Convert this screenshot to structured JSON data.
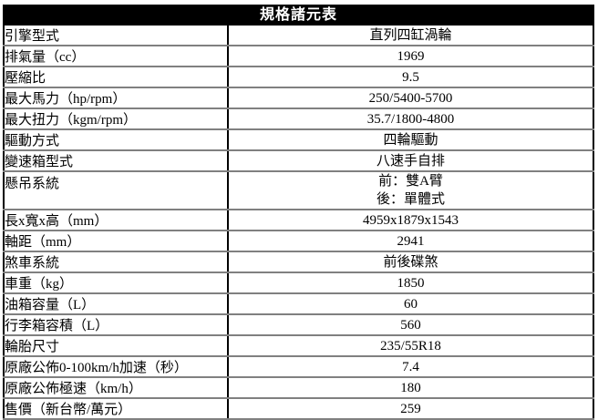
{
  "table": {
    "title": "規格諸元表",
    "rows": [
      {
        "label": "引擎型式",
        "value": "直列四缸渦輪"
      },
      {
        "label": "排氣量（cc）",
        "value": "1969"
      },
      {
        "label": "壓縮比",
        "value": "9.5"
      },
      {
        "label": "最大馬力（hp/rpm）",
        "value": "250/5400-5700"
      },
      {
        "label": "最大扭力（kgm/rpm）",
        "value": "35.7/1800-4800"
      },
      {
        "label": "驅動方式",
        "value": "四輪驅動"
      },
      {
        "label": "變速箱型式",
        "value": "八速手自排"
      },
      {
        "label": "懸吊系統",
        "value": "前：雙A臂\n後：單體式"
      },
      {
        "label": "長x寬x高（mm）",
        "value": "4959x1879x1543"
      },
      {
        "label": "軸距（mm）",
        "value": "2941"
      },
      {
        "label": "煞車系統",
        "value": "前後碟煞"
      },
      {
        "label": "車重（kg）",
        "value": "1850"
      },
      {
        "label": "油箱容量（L）",
        "value": "60"
      },
      {
        "label": "行李箱容積（L）",
        "value": "560"
      },
      {
        "label": "輪胎尺寸",
        "value": "235/55R18"
      },
      {
        "label": "原廠公佈0-100km/h加速（秒）",
        "value": "7.4"
      },
      {
        "label": "原廠公佈極速（km/h）",
        "value": "180"
      },
      {
        "label": "售價（新台幣/萬元）",
        "value": "259"
      }
    ],
    "colors": {
      "header_bg": "#000000",
      "header_text": "#ffffff",
      "row_separator": "#808080",
      "column_divider": "#000000"
    }
  }
}
